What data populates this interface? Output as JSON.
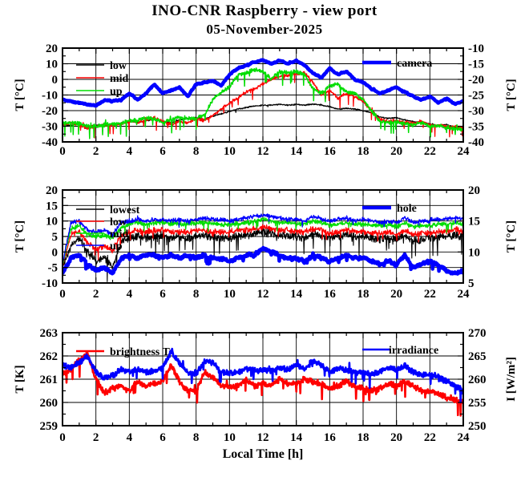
{
  "title": "INO-CNR Raspberry - view port",
  "subtitle": "05-November-2025",
  "xlabel": "Local Time [h]",
  "colors": {
    "black": "#000000",
    "red": "#ff0000",
    "green": "#00dd00",
    "blue": "#0000ff",
    "frame": "#000000",
    "background": "#ffffff"
  },
  "x_axis": {
    "range": [
      0,
      24
    ],
    "major": 2,
    "minor": 1,
    "tick_labels": [
      "0",
      "2",
      "4",
      "6",
      "8",
      "10",
      "12",
      "14",
      "16",
      "18",
      "20",
      "22",
      "24"
    ]
  },
  "chart_data": [
    {
      "type": "line",
      "name": "viewport-temperatures",
      "x_step": 0.5,
      "left_axis": {
        "label": "T [°C]",
        "range": [
          -40,
          20
        ],
        "major": 10,
        "minor": 5,
        "ticks": [
          [
            20,
            "20"
          ],
          [
            10,
            "10"
          ],
          [
            0,
            "0"
          ],
          [
            -10,
            "-10"
          ],
          [
            -20,
            "-20"
          ],
          [
            -30,
            "-30"
          ],
          [
            -40,
            "-40"
          ]
        ]
      },
      "right_axis": {
        "label": "T [°C]",
        "range": [
          -40,
          -10
        ],
        "major": 5,
        "minor": 2.5,
        "ticks": [
          [
            -10,
            "-10"
          ],
          [
            -15,
            "-15"
          ],
          [
            -20,
            "-20"
          ],
          [
            -25,
            "-25"
          ],
          [
            -30,
            "-30"
          ],
          [
            -35,
            "-35"
          ],
          [
            -40,
            "-40"
          ]
        ]
      },
      "legend_left": [
        "low",
        "mid",
        "up"
      ],
      "legend_right": [
        "camera"
      ],
      "series": [
        {
          "name": "low",
          "color": "#000000",
          "width": 1.2,
          "axis": "left",
          "noise": 0.5,
          "spike_p": 0.02,
          "spike_mag": 3,
          "spike_bias": -0.3,
          "values": [
            -29,
            -29.5,
            -28.5,
            -30,
            -29.5,
            -29,
            -28.5,
            -28.5,
            -27,
            -27.5,
            -26.5,
            -25.5,
            -27,
            -28,
            -26,
            -25,
            -24.5,
            -25.5,
            -23.5,
            -22,
            -20.5,
            -19,
            -18,
            -17,
            -16.5,
            -16.5,
            -16,
            -16.5,
            -16,
            -16.5,
            -15.8,
            -16.5,
            -17.5,
            -19,
            -18.5,
            -19,
            -20,
            -21.5,
            -24,
            -25,
            -24.5,
            -26,
            -27,
            -27.5,
            -28.5,
            -29.5,
            -29,
            -30.5,
            -31
          ]
        },
        {
          "name": "mid",
          "color": "#ff0000",
          "width": 1.3,
          "axis": "left",
          "noise": 1.2,
          "spike_p": 0.05,
          "spike_mag": 4,
          "spike_bias": -0.5,
          "values": [
            -29,
            -27.5,
            -29.5,
            -31,
            -30,
            -29.5,
            -29,
            -28.5,
            -26.5,
            -27.5,
            -26,
            -24.5,
            -27,
            -29,
            -26.5,
            -28,
            -25,
            -26.5,
            -23,
            -19,
            -15,
            -12,
            -8,
            -6,
            -3,
            0,
            2,
            2.5,
            3.5,
            4.5,
            -2,
            -10,
            -7,
            -12,
            -9,
            -11,
            -14,
            -20,
            -25.5,
            -27,
            -26.5,
            -27.5,
            -28,
            -26.5,
            -29.5,
            -29,
            -30.5,
            -30,
            -31
          ]
        },
        {
          "name": "up",
          "color": "#00dd00",
          "width": 1.5,
          "axis": "left",
          "noise": 1.5,
          "spike_p": 0.05,
          "spike_mag": 4,
          "spike_bias": -0.5,
          "values": [
            -28.5,
            -27.5,
            -28.5,
            -30,
            -29.5,
            -29,
            -28.5,
            -28,
            -26,
            -26.5,
            -24.5,
            -25,
            -28,
            -25.5,
            -24,
            -25,
            -25,
            -23,
            -13,
            -8,
            -5,
            3,
            4,
            6,
            5,
            0,
            5,
            4,
            5,
            3,
            -6,
            -9,
            -4,
            -3,
            -8,
            -9,
            -13,
            -20,
            -26.5,
            -28,
            -27,
            -28.5,
            -29,
            -27.5,
            -30.5,
            -29.5,
            -31,
            -31.5,
            -32
          ]
        },
        {
          "name": "camera",
          "color": "#0000ff",
          "width": 4.5,
          "axis": "right",
          "noise": 0.5,
          "spike_p": 0.01,
          "spike_mag": 2,
          "spike_bias": 0,
          "inertia": 0.6,
          "values": [
            -26.5,
            -27,
            -27.5,
            -28,
            -28.3,
            -26.8,
            -27,
            -26.5,
            -24.5,
            -26.5,
            -24.5,
            -21.5,
            -24.5,
            -23.5,
            -22.5,
            -25.5,
            -21.5,
            -21,
            -20.5,
            -22,
            -18.5,
            -16.5,
            -15.5,
            -14.5,
            -13.8,
            -15,
            -14,
            -15,
            -14,
            -15.5,
            -18,
            -19.5,
            -16.5,
            -18.5,
            -17.5,
            -20,
            -21,
            -23,
            -24.5,
            -23.5,
            -22.5,
            -24,
            -25.5,
            -26.5,
            -25.5,
            -27.5,
            -26,
            -28,
            -27
          ]
        }
      ]
    },
    {
      "type": "line",
      "name": "internal-temperatures",
      "x_step": 0.5,
      "left_axis": {
        "label": "T [°C]",
        "range": [
          -10,
          20
        ],
        "major": 5,
        "minor": 2.5,
        "ticks": [
          [
            20,
            "20"
          ],
          [
            15,
            "15"
          ],
          [
            10,
            "10"
          ],
          [
            5,
            "5"
          ],
          [
            0,
            "0"
          ],
          [
            -5,
            "-5"
          ],
          [
            -10,
            "-10"
          ]
        ]
      },
      "right_axis": {
        "label": "T [°C]",
        "range": [
          5,
          20
        ],
        "major": 5,
        "minor": 2.5,
        "ticks": [
          [
            20,
            "20"
          ],
          [
            15,
            "15"
          ],
          [
            10,
            "10"
          ],
          [
            5,
            "5"
          ]
        ]
      },
      "legend_left": [
        "lowest",
        "low",
        "mid",
        "up"
      ],
      "legend_right": [
        "hole"
      ],
      "series": [
        {
          "name": "lowest",
          "color": "#000000",
          "width": 1.1,
          "axis": "left",
          "noise": 1.6,
          "spike_p": 0.06,
          "spike_mag": 2.5,
          "spike_bias": -0.6,
          "values": [
            -5,
            2,
            4.5,
            0,
            -3,
            -2,
            -5,
            3,
            4.5,
            5,
            4.5,
            5,
            5,
            4.5,
            5,
            4.5,
            5,
            5.5,
            4.5,
            4.5,
            4.5,
            5,
            5.5,
            6,
            6.5,
            6,
            5.5,
            5,
            5,
            4.5,
            6,
            5,
            4.5,
            5,
            5.5,
            5,
            5,
            4.5,
            4,
            4.5,
            4,
            5.5,
            3.5,
            4,
            4.5,
            5,
            5,
            5.5,
            4.5
          ]
        },
        {
          "name": "low",
          "color": "#ff0000",
          "width": 1.2,
          "axis": "left",
          "noise": 1.1,
          "spike_p": 0.05,
          "spike_mag": 2,
          "spike_bias": -0.5,
          "values": [
            -4.5,
            5.5,
            6.5,
            3,
            1,
            2,
            0.5,
            5.5,
            6.5,
            7,
            6.5,
            7,
            7,
            6.5,
            6.5,
            6.5,
            7,
            7,
            6.5,
            6.5,
            6.5,
            7,
            7,
            7.5,
            8,
            7.5,
            7,
            7,
            6.5,
            6.5,
            7.5,
            7,
            6,
            6.5,
            7,
            6.5,
            6.5,
            6,
            6,
            6.5,
            5.5,
            7,
            5.5,
            6,
            6,
            6.5,
            6.5,
            7.5,
            6.5
          ]
        },
        {
          "name": "mid",
          "color": "#00dd00",
          "width": 1.3,
          "axis": "left",
          "noise": 0.9,
          "spike_p": 0.04,
          "spike_mag": 2,
          "spike_bias": -0.4,
          "values": [
            -4,
            7.5,
            8.5,
            6,
            5,
            5.5,
            4.5,
            8,
            9,
            9.5,
            9,
            9.5,
            9.5,
            9,
            9,
            9,
            9.5,
            9.5,
            9,
            9,
            9,
            9,
            9.5,
            10,
            10.5,
            10,
            9.5,
            9.5,
            9,
            9,
            10,
            9.5,
            8.5,
            9,
            9.5,
            9,
            9,
            8.5,
            8.5,
            9,
            8,
            9.5,
            8,
            8.5,
            8.5,
            9,
            9,
            9.5,
            9
          ]
        },
        {
          "name": "up",
          "color": "#0000ff",
          "width": 1.3,
          "axis": "left",
          "noise": 0.8,
          "spike_p": 0.04,
          "spike_mag": 2,
          "spike_bias": -0.3,
          "values": [
            -4,
            9.5,
            10,
            7,
            6.5,
            7,
            5.5,
            9.5,
            10,
            10.5,
            10,
            10.5,
            10.5,
            10,
            10.5,
            10,
            10.5,
            11,
            10.5,
            10.5,
            10,
            10.5,
            11,
            11.5,
            12,
            11.5,
            11,
            10.5,
            10.5,
            10,
            11.5,
            10.5,
            10,
            10.5,
            11,
            10,
            10.5,
            10,
            9.5,
            10,
            9.5,
            11,
            9.5,
            10,
            10,
            10.5,
            10.5,
            11,
            10.5
          ]
        },
        {
          "name": "hole",
          "color": "#0000ff",
          "width": 4.5,
          "axis": "right",
          "noise": 0.55,
          "spike_p": 0.04,
          "spike_mag": 2.5,
          "spike_bias": -0.5,
          "inertia": 0.5,
          "values": [
            6.5,
            9,
            9.5,
            8,
            7,
            7.5,
            6.5,
            9,
            9.5,
            9,
            9.5,
            9.5,
            9,
            9.5,
            9,
            9.5,
            9,
            9.5,
            9,
            9,
            8.5,
            9,
            9.5,
            9.5,
            10.5,
            10,
            9.5,
            9,
            9,
            8.5,
            9.5,
            9,
            8.5,
            9,
            9.5,
            9,
            9,
            8.5,
            8,
            8.5,
            8,
            9.5,
            7.5,
            8,
            8.5,
            8,
            7,
            6.5,
            7
          ]
        }
      ]
    },
    {
      "type": "line",
      "name": "sky-brightness-irradiance",
      "x_step": 0.5,
      "left_axis": {
        "label": "T [K]",
        "range": [
          259,
          263
        ],
        "major": 1,
        "minor": 0.5,
        "ticks": [
          [
            263,
            "263"
          ],
          [
            262,
            "262"
          ],
          [
            261,
            "261"
          ],
          [
            260,
            "260"
          ],
          [
            259,
            "259"
          ]
        ]
      },
      "right_axis": {
        "label": "I [W/m²]",
        "range": [
          250,
          270
        ],
        "major": 5,
        "minor": 2.5,
        "ticks": [
          [
            270,
            "270"
          ],
          [
            265,
            "265"
          ],
          [
            260,
            "260"
          ],
          [
            255,
            "255"
          ],
          [
            250,
            "250"
          ]
        ]
      },
      "legend_left": [
        "brightness T"
      ],
      "legend_right": [
        "irradiance"
      ],
      "series": [
        {
          "name": "brightness T",
          "color": "#ff0000",
          "width": 2.6,
          "axis": "left",
          "noise": 0.14,
          "spike_p": 0.04,
          "spike_mag": 3.5,
          "spike_bias": -0.5,
          "values": [
            261.2,
            261.4,
            261.8,
            262.1,
            261.0,
            260.4,
            260.6,
            260.7,
            260.5,
            260.9,
            260.7,
            260.8,
            260.9,
            261.6,
            260.9,
            260.5,
            260.5,
            261.3,
            261.1,
            260.7,
            260.7,
            260.7,
            261.0,
            260.7,
            260.8,
            260.7,
            261.0,
            260.8,
            260.8,
            261.0,
            260.9,
            260.8,
            260.6,
            260.7,
            260.9,
            260.7,
            260.6,
            260.5,
            260.6,
            260.8,
            260.7,
            260.9,
            260.7,
            260.5,
            260.5,
            260.4,
            260.2,
            260.1,
            260.0
          ]
        },
        {
          "name": "irradiance",
          "color": "#0000ff",
          "width": 2.6,
          "axis": "right",
          "noise": 0.7,
          "spike_p": 0.04,
          "spike_mag": 3,
          "spike_bias": -0.3,
          "values": [
            263,
            262.5,
            263.5,
            265,
            261.5,
            260.3,
            260.8,
            262,
            261.5,
            262,
            261.5,
            261.8,
            262.5,
            266,
            263.5,
            261.5,
            261,
            264,
            263.5,
            261.5,
            261.3,
            261.5,
            262.5,
            261.8,
            262,
            261.8,
            262.5,
            262,
            263,
            262,
            264,
            263,
            261.5,
            262.5,
            262,
            261.5,
            261.5,
            261,
            261.5,
            262.5,
            262,
            263,
            261.5,
            261,
            261,
            260.5,
            259.5,
            258.5,
            257.5
          ]
        }
      ]
    }
  ]
}
